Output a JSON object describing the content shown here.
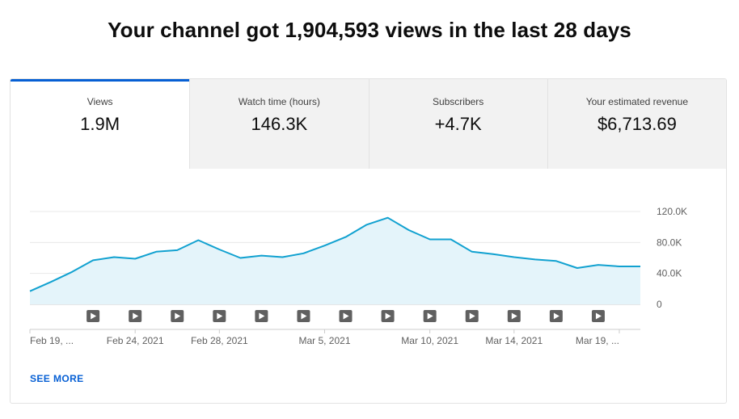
{
  "headline": "Your channel got 1,904,593 views in the last 28 days",
  "tabs": [
    {
      "label": "Views",
      "value": "1.9M",
      "active": true
    },
    {
      "label": "Watch time (hours)",
      "value": "146.3K",
      "active": false
    },
    {
      "label": "Subscribers",
      "value": "+4.7K",
      "active": false
    },
    {
      "label": "Your estimated revenue",
      "value": "$6,713.69",
      "active": false
    }
  ],
  "colors": {
    "accent": "#065fd4",
    "line": "#11a1d0",
    "area": "#e4f4fa",
    "video_marker": "#606060"
  },
  "chart_data": {
    "type": "area",
    "title": "",
    "xlabel": "",
    "ylabel": "",
    "ylim": [
      0,
      120000
    ],
    "yticks": [
      {
        "value": 0,
        "label": "0"
      },
      {
        "value": 40000,
        "label": "40.0K"
      },
      {
        "value": 80000,
        "label": "80.0K"
      },
      {
        "value": 120000,
        "label": "120.0K"
      }
    ],
    "x": [
      "2021-02-19",
      "2021-02-20",
      "2021-02-21",
      "2021-02-22",
      "2021-02-23",
      "2021-02-24",
      "2021-02-25",
      "2021-02-26",
      "2021-02-27",
      "2021-02-28",
      "2021-03-01",
      "2021-03-02",
      "2021-03-03",
      "2021-03-04",
      "2021-03-05",
      "2021-03-06",
      "2021-03-07",
      "2021-03-08",
      "2021-03-09",
      "2021-03-10",
      "2021-03-11",
      "2021-03-12",
      "2021-03-13",
      "2021-03-14",
      "2021-03-15",
      "2021-03-16",
      "2021-03-17",
      "2021-03-18",
      "2021-03-19",
      "2021-03-20"
    ],
    "series": [
      {
        "values": [
          17000,
          29000,
          42000,
          57000,
          61000,
          59000,
          68000,
          70000,
          83000,
          71000,
          60000,
          63000,
          61000,
          66000,
          76000,
          87000,
          103000,
          112000,
          96000,
          84000,
          84000,
          68000,
          65000,
          61000,
          58000,
          56000,
          47000,
          51000,
          49000,
          49000
        ]
      }
    ],
    "xticks": [
      {
        "date": "2021-02-19",
        "label": "Feb 19, ..."
      },
      {
        "date": "2021-02-24",
        "label": "Feb 24, 2021"
      },
      {
        "date": "2021-02-28",
        "label": "Feb 28, 2021"
      },
      {
        "date": "2021-03-05",
        "label": "Mar 5, 2021"
      },
      {
        "date": "2021-03-10",
        "label": "Mar 10, 2021"
      },
      {
        "date": "2021-03-14",
        "label": "Mar 14, 2021"
      },
      {
        "date": "2021-03-19",
        "label": "Mar 19, ..."
      }
    ],
    "video_markers": [
      "2021-02-22",
      "2021-02-24",
      "2021-02-26",
      "2021-02-28",
      "2021-03-02",
      "2021-03-04",
      "2021-03-06",
      "2021-03-08",
      "2021-03-10",
      "2021-03-12",
      "2021-03-14",
      "2021-03-16",
      "2021-03-18"
    ],
    "grid": true
  },
  "see_more": "SEE MORE"
}
